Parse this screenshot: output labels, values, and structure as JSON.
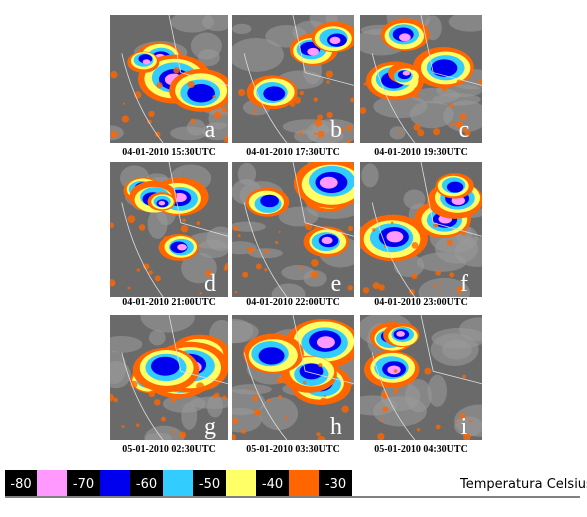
{
  "panels": [
    {
      "letter": "a",
      "timestamp": "04-01-2010 15:30UTC"
    },
    {
      "letter": "b",
      "timestamp": "04-01-2010 17:30UTC"
    },
    {
      "letter": "c",
      "timestamp": "04-01-2010 19:30UTC"
    },
    {
      "letter": "d",
      "timestamp": "04-01-2010 21:00UTC"
    },
    {
      "letter": "e",
      "timestamp": "04-01-2010 22:00UTC"
    },
    {
      "letter": "f",
      "timestamp": "04-01-2010 23:00UTC"
    },
    {
      "letter": "g",
      "timestamp": "05-01-2010 02:30UTC"
    },
    {
      "letter": "h",
      "timestamp": "05-01-2010 03:30UTC"
    },
    {
      "letter": "i",
      "timestamp": "05-01-2010 04:30UTC"
    }
  ],
  "legend": {
    "steps": [
      {
        "label": "-80",
        "color": "#ff99ff"
      },
      {
        "label": "-70",
        "color": "#0000ee"
      },
      {
        "label": "-60",
        "color": "#33ccff"
      },
      {
        "label": "-50",
        "color": "#ffff66"
      },
      {
        "label": "-40",
        "color": "#ff6600"
      },
      {
        "label": "-30"
      }
    ],
    "title": "Temperatura Celsius"
  }
}
